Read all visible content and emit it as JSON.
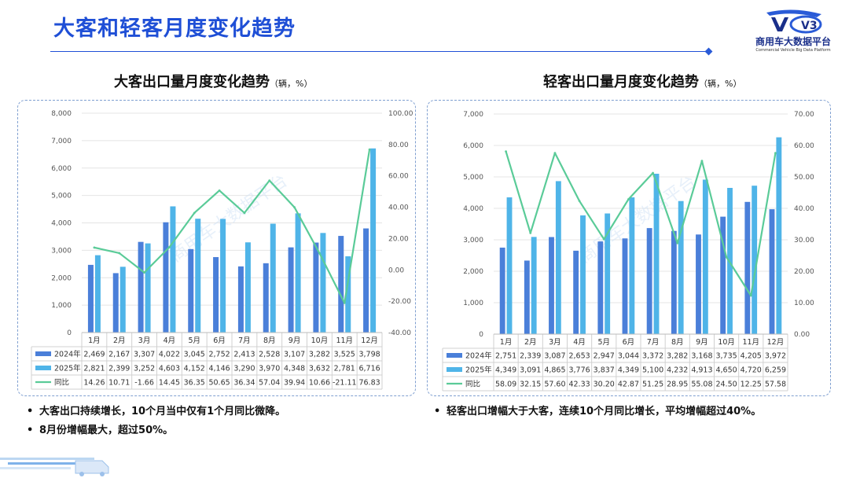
{
  "page": {
    "title": "大客和轻客月度变化趋势",
    "logo": {
      "mark": "V3",
      "name_cn": "商用车大数据平台",
      "name_en": "Commercial Vehicle Big Data Platform",
      "watermark": "商用车大数据平台"
    }
  },
  "colors": {
    "bar2024": "#4a7fd9",
    "bar2025": "#4fb4e8",
    "line": "#5acb98",
    "accent": "#1f4fd6",
    "border": "#7f9fd0"
  },
  "legend_labels": {
    "s2024": "2024年",
    "s2025": "2025年",
    "yoy": "同比"
  },
  "bullets_left": [
    "大客出口持续增长，10个月当中仅有1个月同比微降。",
    "8月份增幅最大，超过50%。"
  ],
  "bullets_right": [
    "轻客出口增幅大于大客，连续10个月同比增长，平均增幅超过40%。"
  ],
  "chart_data": [
    {
      "type": "bar",
      "title": "大客出口量月度变化趋势",
      "unit": "（辆，%）",
      "categories": [
        "1月",
        "2月",
        "3月",
        "4月",
        "5月",
        "6月",
        "7月",
        "8月",
        "9月",
        "10月",
        "11月",
        "12月"
      ],
      "series": [
        {
          "name": "2024年",
          "type": "bar",
          "axis": "left",
          "values": [
            2469,
            2167,
            3307,
            4022,
            3045,
            2752,
            2413,
            2528,
            3107,
            3282,
            3525,
            3798
          ]
        },
        {
          "name": "2025年",
          "type": "bar",
          "axis": "left",
          "values": [
            2821,
            2399,
            3252,
            4603,
            4152,
            4146,
            3290,
            3970,
            4348,
            3632,
            2781,
            6716
          ]
        },
        {
          "name": "同比",
          "type": "line",
          "axis": "right",
          "values": [
            14.26,
            10.71,
            -1.66,
            14.45,
            36.35,
            50.65,
            36.34,
            57.04,
            39.94,
            10.66,
            -21.11,
            76.83
          ]
        }
      ],
      "y_left": {
        "min": 0,
        "max": 8000,
        "ticks": [
          "0",
          "1,000",
          "2,000",
          "3,000",
          "4,000",
          "5,000",
          "6,000",
          "7,000",
          "8,000"
        ]
      },
      "y_right": {
        "min": -40,
        "max": 100,
        "ticks": [
          "-40.00",
          "-20.00",
          "0.00",
          "20.00",
          "40.00",
          "60.00",
          "80.00",
          "100.00"
        ]
      },
      "table": {
        "s2024": [
          "2,469",
          "2,167",
          "3,307",
          "4,022",
          "3,045",
          "2,752",
          "2,413",
          "2,528",
          "3,107",
          "3,282",
          "3,525",
          "3,798"
        ],
        "s2025": [
          "2,821",
          "2,399",
          "3,252",
          "4,603",
          "4,152",
          "4,146",
          "3,290",
          "3,970",
          "4,348",
          "3,632",
          "2,781",
          "6,716"
        ],
        "yoy": [
          "14.26",
          "10.71",
          "-1.66",
          "14.45",
          "36.35",
          "50.65",
          "36.34",
          "57.04",
          "39.94",
          "10.66",
          "-21.11",
          "76.83"
        ]
      }
    },
    {
      "type": "bar",
      "title": "轻客出口量月度变化趋势",
      "unit": "（辆，%）",
      "categories": [
        "1月",
        "2月",
        "3月",
        "4月",
        "5月",
        "6月",
        "7月",
        "8月",
        "9月",
        "10月",
        "11月",
        "12月"
      ],
      "series": [
        {
          "name": "2024年",
          "type": "bar",
          "axis": "left",
          "values": [
            2751,
            2339,
            3087,
            2653,
            2947,
            3044,
            3372,
            3282,
            3168,
            3735,
            4205,
            3972
          ]
        },
        {
          "name": "2025年",
          "type": "bar",
          "axis": "left",
          "values": [
            4349,
            3091,
            4865,
            3776,
            3837,
            4349,
            5100,
            4232,
            4913,
            4650,
            4720,
            6259
          ]
        },
        {
          "name": "同比",
          "type": "line",
          "axis": "right",
          "values": [
            58.09,
            32.15,
            57.6,
            42.33,
            30.2,
            42.87,
            51.25,
            28.95,
            55.08,
            24.5,
            12.25,
            57.58
          ]
        }
      ],
      "y_left": {
        "min": 0,
        "max": 7000,
        "ticks": [
          "0",
          "1,000",
          "2,000",
          "3,000",
          "4,000",
          "5,000",
          "6,000",
          "7,000"
        ]
      },
      "y_right": {
        "min": 0,
        "max": 70,
        "ticks": [
          "0.00",
          "10.00",
          "20.00",
          "30.00",
          "40.00",
          "50.00",
          "60.00",
          "70.00"
        ]
      },
      "table": {
        "s2024": [
          "2,751",
          "2,339",
          "3,087",
          "2,653",
          "2,947",
          "3,044",
          "3,372",
          "3,282",
          "3,168",
          "3,735",
          "4,205",
          "3,972"
        ],
        "s2025": [
          "4,349",
          "3,091",
          "4,865",
          "3,776",
          "3,837",
          "4,349",
          "5,100",
          "4,232",
          "4,913",
          "4,650",
          "4,720",
          "6,259"
        ],
        "yoy": [
          "58.09",
          "32.15",
          "57.60",
          "42.33",
          "30.20",
          "42.87",
          "51.25",
          "28.95",
          "55.08",
          "24.50",
          "12.25",
          "57.58"
        ]
      }
    }
  ]
}
